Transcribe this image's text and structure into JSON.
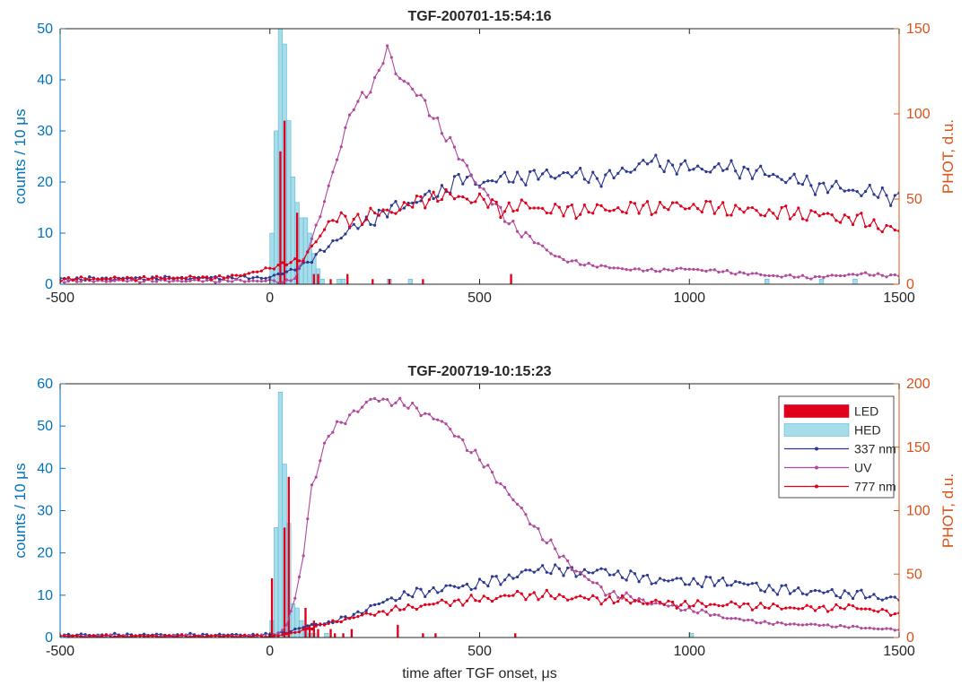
{
  "chart_data": [
    {
      "type": "histogram+line",
      "title": "TGF-200701-15:54:16",
      "xlim": [
        -500,
        1500
      ],
      "x_ticks": [
        "-500",
        "0",
        "500",
        "1000",
        "1500"
      ],
      "ylabel_left": "counts / 10 μs",
      "ylim_left": [
        0,
        50
      ],
      "y_ticks_left": [
        "0",
        "10",
        "20",
        "30",
        "40",
        "50"
      ],
      "ylabel_right": "PHOT, d.u.",
      "ylim_right": [
        0,
        150
      ],
      "y_ticks_right": [
        "0",
        "50",
        "100",
        "150"
      ],
      "bin_width_us": 10,
      "hed_bins": [
        {
          "x": 0,
          "v": 10
        },
        {
          "x": 10,
          "v": 30
        },
        {
          "x": 20,
          "v": 50
        },
        {
          "x": 30,
          "v": 47
        },
        {
          "x": 40,
          "v": 32
        },
        {
          "x": 50,
          "v": 21
        },
        {
          "x": 60,
          "v": 16
        },
        {
          "x": 70,
          "v": 13
        },
        {
          "x": 80,
          "v": 13
        },
        {
          "x": 90,
          "v": 10
        },
        {
          "x": 100,
          "v": 6
        },
        {
          "x": 110,
          "v": 3
        },
        {
          "x": 120,
          "v": 1
        },
        {
          "x": 160,
          "v": 1
        },
        {
          "x": 170,
          "v": 1
        },
        {
          "x": 280,
          "v": 1
        },
        {
          "x": 330,
          "v": 1
        },
        {
          "x": 1180,
          "v": 1
        },
        {
          "x": 1310,
          "v": 1
        },
        {
          "x": 1390,
          "v": 1
        }
      ],
      "led_bins": [
        {
          "x": 20,
          "v": 26
        },
        {
          "x": 30,
          "v": 32
        },
        {
          "x": 60,
          "v": 14
        },
        {
          "x": 100,
          "v": 2
        },
        {
          "x": 110,
          "v": 2
        },
        {
          "x": 140,
          "v": 1
        },
        {
          "x": 180,
          "v": 2
        },
        {
          "x": 240,
          "v": 1
        },
        {
          "x": 280,
          "v": 1
        },
        {
          "x": 360,
          "v": 1
        },
        {
          "x": 570,
          "v": 2
        }
      ],
      "series": [
        {
          "name": "337 nm",
          "color": "#2B3990",
          "axis": "right",
          "x": [
            -500,
            0,
            50,
            100,
            150,
            200,
            300,
            400,
            450,
            500,
            600,
            700,
            800,
            900,
            1000,
            1100,
            1200,
            1300,
            1400,
            1500
          ],
          "y": [
            3,
            4,
            8,
            14,
            25,
            33,
            45,
            53,
            62,
            60,
            63,
            65,
            62,
            72,
            68,
            68,
            64,
            58,
            55,
            51
          ]
        },
        {
          "name": "UV",
          "color": "#B04A9C",
          "axis": "right",
          "x": [
            -500,
            0,
            30,
            60,
            100,
            140,
            200,
            250,
            280,
            300,
            350,
            400,
            450,
            500,
            550,
            600,
            650,
            700,
            800,
            900,
            1000,
            1100,
            1200,
            1300,
            1400,
            1500
          ],
          "y": [
            2,
            2,
            1,
            4,
            25,
            58,
            105,
            118,
            138,
            125,
            112,
            95,
            75,
            58,
            42,
            30,
            22,
            14,
            10,
            8,
            9,
            7,
            5,
            4,
            6,
            5
          ]
        },
        {
          "name": "777 nm",
          "color": "#E0001B",
          "axis": "right",
          "x": [
            -500,
            -100,
            0,
            40,
            80,
            120,
            150,
            200,
            300,
            400,
            500,
            550,
            600,
            700,
            800,
            900,
            1000,
            1100,
            1200,
            1300,
            1400,
            1500
          ],
          "y": [
            3,
            4,
            9,
            13,
            14,
            30,
            38,
            38,
            44,
            52,
            50,
            44,
            46,
            43,
            44,
            45,
            46,
            44,
            42,
            41,
            38,
            31
          ]
        }
      ]
    },
    {
      "type": "histogram+line",
      "title": "TGF-200719-10:15:23",
      "xlim": [
        -500,
        1500
      ],
      "x_ticks": [
        "-500",
        "0",
        "500",
        "1000",
        "1500"
      ],
      "xlabel": "time after TGF onset, μs",
      "ylabel_left": "counts / 10 μs",
      "ylim_left": [
        0,
        60
      ],
      "y_ticks_left": [
        "0",
        "10",
        "20",
        "30",
        "40",
        "50",
        "60"
      ],
      "ylabel_right": "PHOT, d.u.",
      "ylim_right": [
        0,
        200
      ],
      "y_ticks_right": [
        "0",
        "50",
        "100",
        "150",
        "200"
      ],
      "bin_width_us": 10,
      "hed_bins": [
        {
          "x": 0,
          "v": 4
        },
        {
          "x": 10,
          "v": 26
        },
        {
          "x": 20,
          "v": 58
        },
        {
          "x": 30,
          "v": 41
        },
        {
          "x": 40,
          "v": 27
        },
        {
          "x": 50,
          "v": 8
        },
        {
          "x": 60,
          "v": 7
        },
        {
          "x": 70,
          "v": 4
        },
        {
          "x": 80,
          "v": 2
        },
        {
          "x": 90,
          "v": 1
        },
        {
          "x": 100,
          "v": 1
        },
        {
          "x": 130,
          "v": 1
        },
        {
          "x": 1000,
          "v": 1
        }
      ],
      "led_bins": [
        {
          "x": 0,
          "v": 14
        },
        {
          "x": 30,
          "v": 26
        },
        {
          "x": 40,
          "v": 38
        },
        {
          "x": 80,
          "v": 7
        },
        {
          "x": 90,
          "v": 3
        },
        {
          "x": 100,
          "v": 4
        },
        {
          "x": 110,
          "v": 2
        },
        {
          "x": 140,
          "v": 2
        },
        {
          "x": 150,
          "v": 1
        },
        {
          "x": 170,
          "v": 1
        },
        {
          "x": 190,
          "v": 2
        },
        {
          "x": 300,
          "v": 3
        },
        {
          "x": 360,
          "v": 1
        },
        {
          "x": 390,
          "v": 1
        },
        {
          "x": 580,
          "v": 1
        }
      ],
      "series": [
        {
          "name": "337 nm",
          "color": "#2B3990",
          "axis": "right",
          "x": [
            -500,
            0,
            50,
            100,
            150,
            200,
            250,
            300,
            400,
            500,
            600,
            650,
            700,
            800,
            900,
            1000,
            1100,
            1200,
            1300,
            1400,
            1500
          ],
          "y": [
            2,
            2,
            5,
            10,
            12,
            18,
            25,
            32,
            38,
            42,
            50,
            55,
            52,
            52,
            46,
            44,
            44,
            38,
            36,
            34,
            30
          ]
        },
        {
          "name": "UV",
          "color": "#B04A9C",
          "axis": "right",
          "x": [
            -500,
            0,
            20,
            40,
            60,
            80,
            100,
            140,
            200,
            250,
            300,
            350,
            400,
            450,
            500,
            550,
            600,
            650,
            700,
            750,
            800,
            900,
            1000,
            1100,
            1200,
            1300,
            1400,
            1500
          ],
          "y": [
            1,
            1,
            3,
            10,
            30,
            65,
            120,
            160,
            178,
            188,
            186,
            180,
            172,
            158,
            140,
            122,
            100,
            80,
            62,
            48,
            36,
            28,
            22,
            15,
            11,
            10,
            8,
            6
          ]
        },
        {
          "name": "777 nm",
          "color": "#E0001B",
          "axis": "right",
          "x": [
            -500,
            0,
            50,
            100,
            150,
            200,
            300,
            400,
            500,
            600,
            700,
            800,
            900,
            1000,
            1100,
            1200,
            1300,
            1400,
            1500
          ],
          "y": [
            1,
            1,
            3,
            8,
            12,
            16,
            22,
            27,
            30,
            34,
            32,
            30,
            28,
            26,
            26,
            24,
            23,
            24,
            18
          ]
        }
      ]
    }
  ],
  "legend": {
    "location": "top-right of bottom panel",
    "items": [
      {
        "label": "LED",
        "kind": "bar",
        "color": "#E0001B"
      },
      {
        "label": "HED",
        "kind": "bar",
        "color": "#A7DCEA"
      },
      {
        "label": "337 nm",
        "kind": "line",
        "color": "#2B3990"
      },
      {
        "label": "UV",
        "kind": "line",
        "color": "#B04A9C"
      },
      {
        "label": "777 nm",
        "kind": "line",
        "color": "#E0001B"
      }
    ]
  },
  "colors": {
    "hed_fill": "#A7DCEA",
    "hed_edge": "#5AB9D3",
    "led_fill": "#E0001B",
    "axis": "#262626",
    "left_axis": "#0072BD",
    "right_axis": "#D95319"
  }
}
